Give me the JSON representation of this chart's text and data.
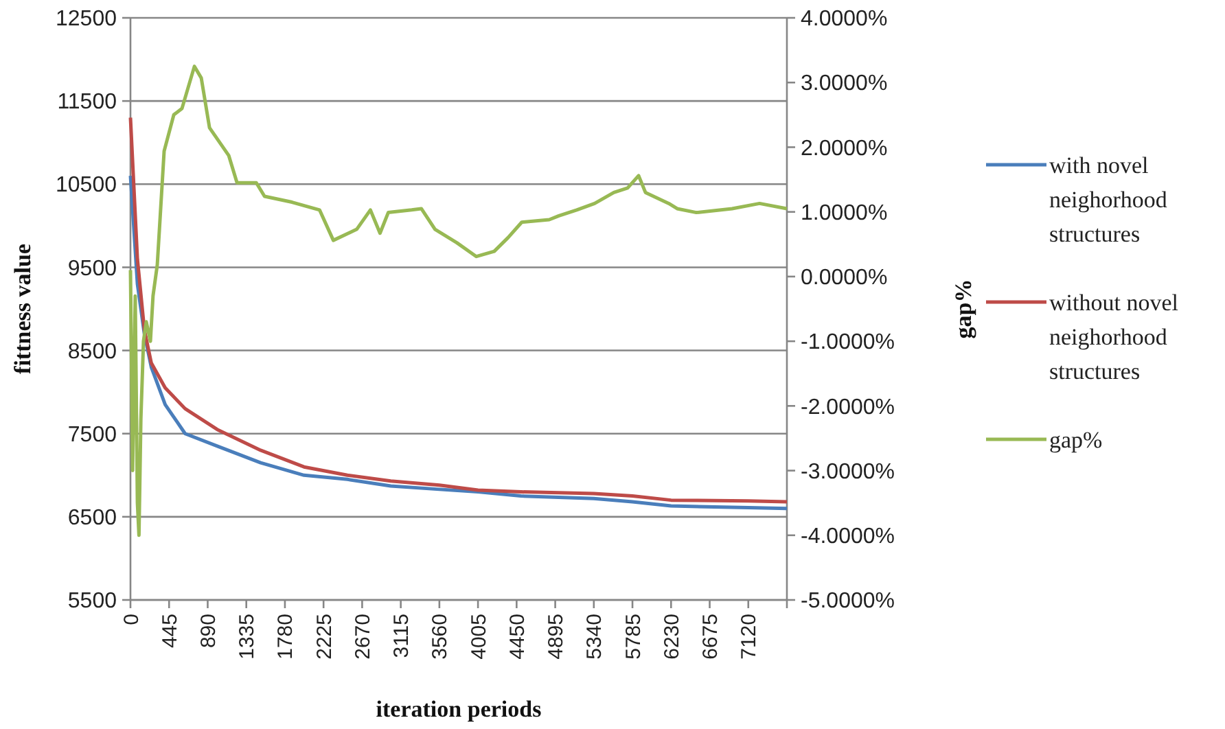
{
  "chart_data": {
    "type": "line",
    "xlabel": "iteration periods",
    "ylabel": "fittness value",
    "y2label": "gap%",
    "xlim": [
      0,
      7565
    ],
    "xticks": [
      0,
      445,
      890,
      1335,
      1780,
      2225,
      2670,
      3115,
      3560,
      4005,
      4450,
      4895,
      5340,
      5785,
      6230,
      6675,
      7120,
      {
        "value": 7565,
        "label": null
      }
    ],
    "ylim": [
      5500,
      12500
    ],
    "yticks": [
      5500,
      6500,
      7500,
      8500,
      9500,
      10500,
      11500,
      12500
    ],
    "y2lim": [
      -5,
      4
    ],
    "y2ticks": [
      {
        "value": -5,
        "label": "-5.0000%"
      },
      {
        "value": -4,
        "label": "-4.0000%"
      },
      {
        "value": -3,
        "label": "-3.0000%"
      },
      {
        "value": -2,
        "label": "-2.0000%"
      },
      {
        "value": -1,
        "label": "-1.0000%"
      },
      {
        "value": 0,
        "label": "0.0000%"
      },
      {
        "value": 1,
        "label": "1.0000%"
      },
      {
        "value": 2,
        "label": "2.0000%"
      },
      {
        "value": 3,
        "label": "3.0000%"
      },
      {
        "value": 4,
        "label": "4.0000%"
      }
    ],
    "grid": "y",
    "legend": "right",
    "marker": "none",
    "line_style": "solid",
    "series": [
      {
        "name": "with novel neighorhood structures",
        "color": "#4a7ebb",
        "x": [
          0,
          80,
          160,
          240,
          400,
          630,
          1000,
          1500,
          2000,
          2500,
          3000,
          3560,
          4005,
          4500,
          5340,
          5785,
          6230,
          7120,
          7565
        ],
        "values": [
          10600,
          9300,
          8700,
          8300,
          7850,
          7500,
          7350,
          7150,
          7000,
          6950,
          6870,
          6830,
          6800,
          6750,
          6720,
          6680,
          6630,
          6610,
          6600
        ]
      },
      {
        "name": "without novel neighorhood structures",
        "color": "#be4b48",
        "x": [
          0,
          80,
          160,
          240,
          400,
          630,
          1000,
          1500,
          2000,
          2500,
          3000,
          3560,
          4005,
          4500,
          5340,
          5785,
          6230,
          7120,
          7565
        ],
        "values": [
          11300,
          9600,
          8750,
          8350,
          8050,
          7800,
          7550,
          7300,
          7100,
          7000,
          6930,
          6880,
          6820,
          6800,
          6780,
          6750,
          6700,
          6690,
          6680
        ]
      },
      {
        "name": "gap%",
        "color": "#98b954",
        "axis": "y2",
        "x": [
          0,
          25,
          55,
          80,
          98,
          120,
          150,
          182,
          230,
          260,
          309,
          388,
          499,
          594,
          737,
          816,
          911,
          1133,
          1228,
          1450,
          1545,
          1862,
          2179,
          2338,
          2607,
          2765,
          2876,
          2971,
          3241,
          3352,
          3510,
          3716,
          3764,
          3986,
          4192,
          4350,
          4509,
          4826,
          4937,
          5143,
          5349,
          5571,
          5729,
          5856,
          5935,
          6204,
          6300,
          6521,
          6933,
          7250,
          7565
        ],
        "values": [
          0.1,
          -3.0,
          -0.3,
          -3.5,
          -4.0,
          -2.2,
          -1.0,
          -0.7,
          -1.0,
          -0.3,
          0.18,
          1.94,
          2.5,
          2.6,
          3.25,
          3.07,
          2.3,
          1.87,
          1.45,
          1.45,
          1.24,
          1.15,
          1.03,
          0.56,
          0.73,
          1.03,
          0.67,
          0.99,
          1.03,
          1.05,
          0.73,
          0.56,
          0.52,
          0.31,
          0.39,
          0.6,
          0.84,
          0.88,
          0.94,
          1.03,
          1.13,
          1.3,
          1.37,
          1.56,
          1.3,
          1.13,
          1.05,
          0.99,
          1.05,
          1.13,
          1.05
        ]
      }
    ]
  }
}
